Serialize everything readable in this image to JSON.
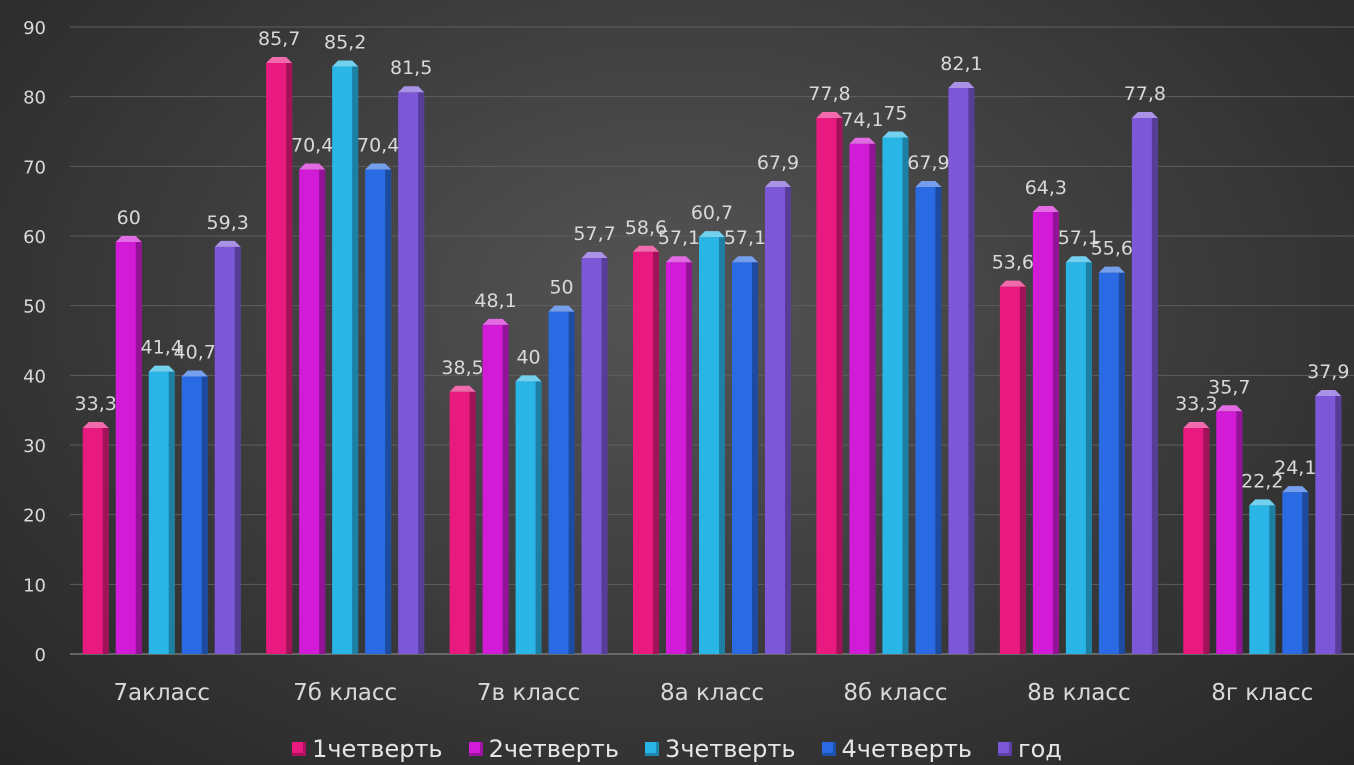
{
  "chart_data": {
    "type": "bar",
    "categories": [
      "7акласс",
      "7б класс",
      "7в класс",
      "8а класс",
      "8б класс",
      "8в класс",
      "8г класс"
    ],
    "series": [
      {
        "name": "1четверть",
        "color": "#e8197f",
        "values": [
          33.3,
          85.7,
          38.5,
          58.6,
          77.8,
          53.6,
          33.3
        ],
        "labels": [
          "33,3",
          "85,7",
          "38,5",
          "58,6",
          "77,8",
          "53,6",
          "33,3"
        ]
      },
      {
        "name": "2четверть",
        "color": "#d21bd6",
        "values": [
          60,
          70.4,
          48.1,
          57.1,
          74.1,
          64.3,
          35.7
        ],
        "labels": [
          "60",
          "70,4",
          "48,1",
          "57,1",
          "74,1",
          "64,3",
          "35,7"
        ]
      },
      {
        "name": "3четверть",
        "color": "#29b6e6",
        "values": [
          41.4,
          85.2,
          40,
          60.7,
          75,
          57.1,
          22.2
        ],
        "labels": [
          "41,4",
          "85,2",
          "40",
          "60,7",
          "75",
          "57,1",
          "22,2"
        ]
      },
      {
        "name": "4четверть",
        "color": "#2a6be3",
        "values": [
          40.7,
          70.4,
          50,
          57.1,
          67.9,
          55.6,
          24.1
        ],
        "labels": [
          "40,7",
          "70,4",
          "50",
          "57,1",
          "67,9",
          "55,6",
          "24,1"
        ]
      },
      {
        "name": "год",
        "color": "#7c57d8",
        "values": [
          59.3,
          81.5,
          57.7,
          67.9,
          82.1,
          77.8,
          37.9
        ],
        "labels": [
          "59,3",
          "81,5",
          "57,7",
          "67,9",
          "82,1",
          "77,8",
          "37,9"
        ]
      }
    ],
    "ylim": [
      0,
      90
    ],
    "yticks": [
      0,
      10,
      20,
      30,
      40,
      50,
      60,
      70,
      80,
      90
    ],
    "grid": true,
    "legend_position": "bottom"
  }
}
